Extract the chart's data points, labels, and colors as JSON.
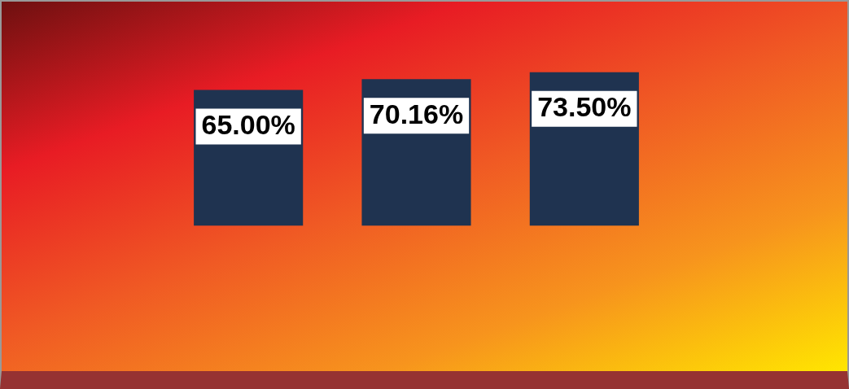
{
  "chart_data": {
    "type": "bar",
    "categories": [
      null,
      null,
      null
    ],
    "values": [
      65.0,
      70.16,
      73.5
    ],
    "value_labels": [
      "65.00%",
      "70.16%",
      "73.50%"
    ],
    "color": "#1f3350",
    "grid": false,
    "legend": false
  }
}
